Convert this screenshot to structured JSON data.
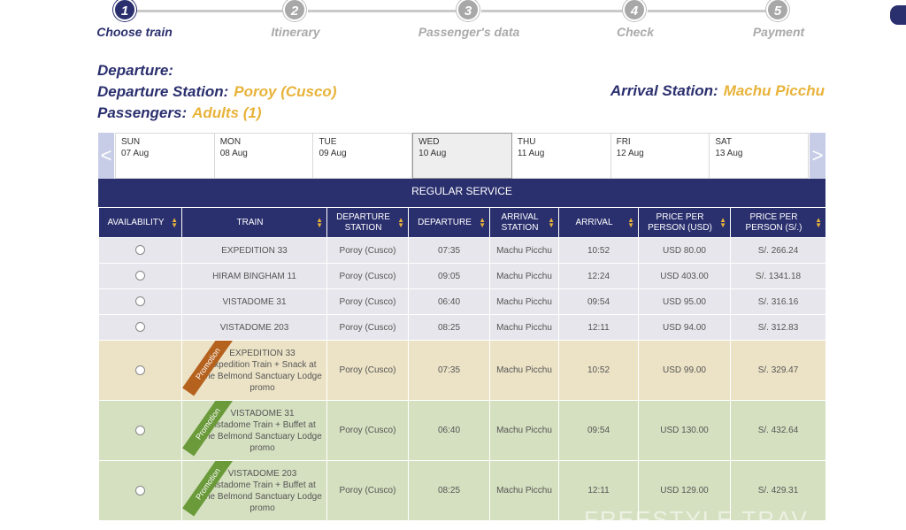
{
  "stepper": {
    "steps": [
      {
        "num": "1",
        "label": "Choose train"
      },
      {
        "num": "2",
        "label": "Itinerary"
      },
      {
        "num": "3",
        "label": "Passenger's data"
      },
      {
        "num": "4",
        "label": "Check"
      },
      {
        "num": "5",
        "label": "Payment"
      }
    ],
    "active_index": 0
  },
  "info": {
    "departure_label": "Departure:",
    "departure_station_label": "Departure Station:",
    "departure_station_value": "Poroy (Cusco)",
    "passengers_label": "Passengers:",
    "passengers_value": "Adults (1)",
    "arrival_station_label": "Arrival Station:",
    "arrival_station_value": "Machu Picchu"
  },
  "datestrip": {
    "prev_arrow": "<",
    "next_arrow": ">",
    "days": [
      {
        "dow": "SUN",
        "date": "07 Aug"
      },
      {
        "dow": "MON",
        "date": "08 Aug"
      },
      {
        "dow": "TUE",
        "date": "09 Aug"
      },
      {
        "dow": "WED",
        "date": "10 Aug"
      },
      {
        "dow": "THU",
        "date": "11 Aug"
      },
      {
        "dow": "FRI",
        "date": "12 Aug"
      },
      {
        "dow": "SAT",
        "date": "13 Aug"
      }
    ],
    "selected_index": 3
  },
  "service": {
    "title": "REGULAR SERVICE",
    "columns": [
      "AVAILABILITY",
      "TRAIN",
      "DEPARTURE STATION",
      "DEPARTURE",
      "ARRIVAL STATION",
      "ARRIVAL",
      "PRICE PER PERSON (USD)",
      "PRICE PER PERSON (S/.)"
    ],
    "rows": [
      {
        "type": "regular",
        "train": "EXPEDITION 33",
        "dep_station": "Poroy (Cusco)",
        "departure": "07:35",
        "arr_station": "Machu Picchu",
        "arrival": "10:52",
        "price_usd": "USD 80.00",
        "price_pen": "S/. 266.24"
      },
      {
        "type": "regular",
        "train": "HIRAM BINGHAM 11",
        "dep_station": "Poroy (Cusco)",
        "departure": "09:05",
        "arr_station": "Machu Picchu",
        "arrival": "12:24",
        "price_usd": "USD 403.00",
        "price_pen": "S/. 1341.18"
      },
      {
        "type": "regular",
        "train": "VISTADOME 31",
        "dep_station": "Poroy (Cusco)",
        "departure": "06:40",
        "arr_station": "Machu Picchu",
        "arrival": "09:54",
        "price_usd": "USD 95.00",
        "price_pen": "S/. 316.16"
      },
      {
        "type": "regular",
        "train": "VISTADOME 203",
        "dep_station": "Poroy (Cusco)",
        "departure": "08:25",
        "arr_station": "Machu Picchu",
        "arrival": "12:11",
        "price_usd": "USD 94.00",
        "price_pen": "S/. 312.83"
      },
      {
        "type": "promo-brown",
        "ribbon": "Promotion",
        "train": "EXPEDITION 33",
        "train_desc": "Expedition Train + Snack at the Belmond Sanctuary Lodge promo",
        "dep_station": "Poroy (Cusco)",
        "departure": "07:35",
        "arr_station": "Machu Picchu",
        "arrival": "10:52",
        "price_usd": "USD 99.00",
        "price_pen": "S/. 329.47"
      },
      {
        "type": "promo-green",
        "ribbon": "Promotion",
        "train": "VISTADOME 31",
        "train_desc": "Vistadome Train + Buffet at the Belmond Sanctuary Lodge promo",
        "dep_station": "Poroy (Cusco)",
        "departure": "06:40",
        "arr_station": "Machu Picchu",
        "arrival": "09:54",
        "price_usd": "USD 130.00",
        "price_pen": "S/. 432.64"
      },
      {
        "type": "promo-green",
        "ribbon": "Promotion",
        "train": "VISTADOME 203",
        "train_desc": "Vistadome Train + Buffet at the Belmond Sanctuary Lodge promo",
        "dep_station": "Poroy (Cusco)",
        "departure": "08:25",
        "arr_station": "Machu Picchu",
        "arrival": "12:11",
        "price_usd": "USD 129.00",
        "price_pen": "S/. 429.31"
      }
    ]
  },
  "watermark": "FREESTYLE TRAV",
  "colors": {
    "navy": "#2a2f6e",
    "gold": "#e8b33a",
    "promo_brown": "#b5621e",
    "promo_green": "#6a9a3a"
  }
}
